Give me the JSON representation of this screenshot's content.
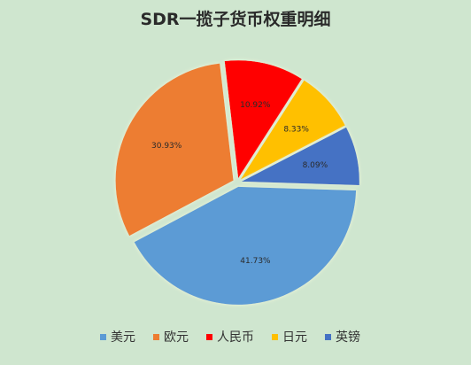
{
  "chart_data": {
    "type": "pie",
    "title": "SDR一揽子货币权重明细",
    "categories": [
      "美元",
      "欧元",
      "人民币",
      "日元",
      "英镑"
    ],
    "values": [
      41.73,
      30.93,
      10.92,
      8.33,
      8.09
    ],
    "labels": [
      "41.73%",
      "30.93%",
      "10.92%",
      "8.33%",
      "8.09%"
    ],
    "colors": [
      "#5b9bd5",
      "#ed7d31",
      "#ff0000",
      "#ffc000",
      "#4472c4"
    ],
    "legend_position": "bottom",
    "exploded_slices": true
  }
}
